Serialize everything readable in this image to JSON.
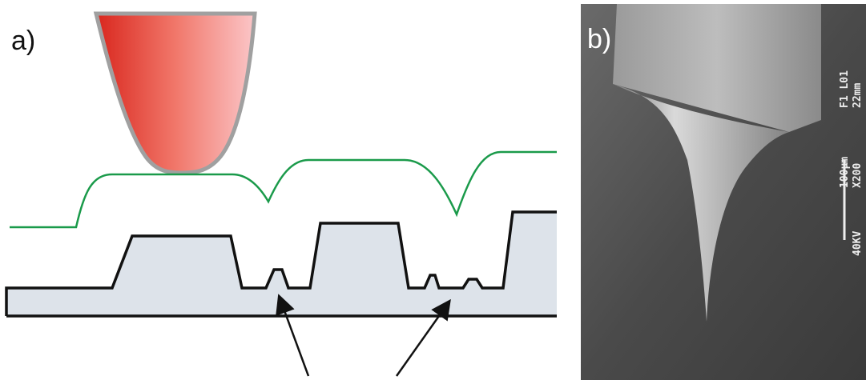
{
  "panel_a": {
    "label": "a)"
  },
  "panel_b": {
    "label": "b)",
    "micrograph_labels": [
      "100µm",
      "X200",
      "F1 L01",
      "22mm",
      "40KV"
    ]
  }
}
